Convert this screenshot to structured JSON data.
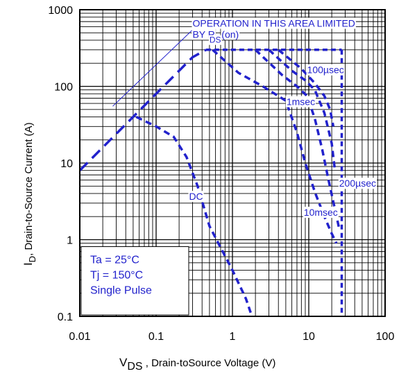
{
  "chart_data": {
    "type": "line",
    "title": "",
    "xlabel_main": "V",
    "xlabel_sub": "DS",
    "xlabel_rest": " , Drain-toSource Voltage (V)",
    "ylabel_main": "I",
    "ylabel_sub": "D",
    "ylabel_rest": ",  Drain-to-Source Current (A)",
    "x_scale": "log",
    "y_scale": "log",
    "xlim": [
      0.01,
      100
    ],
    "ylim": [
      0.1,
      1000
    ],
    "x_ticks": [
      "0.01",
      "0.1",
      "1",
      "10",
      "100"
    ],
    "y_ticks": [
      "0.1",
      "1",
      "10",
      "100",
      "1000"
    ],
    "grid": true,
    "line_color": "#2222cc",
    "series": [
      {
        "name": "",
        "style": "long-dash",
        "x": [
          0.01,
          0.1,
          0.3,
          0.45
        ],
        "y": [
          8,
          80,
          240,
          300
        ]
      },
      {
        "name": "",
        "style": "short-dash",
        "x": [
          0.45,
          27
        ],
        "y": [
          300,
          300
        ]
      },
      {
        "name": "",
        "style": "short-dash",
        "x": [
          27,
          27
        ],
        "y": [
          300,
          0.1
        ]
      },
      {
        "name": "",
        "style": "dash",
        "x": [
          0.055,
          0.1,
          0.17,
          0.25,
          0.35,
          0.5,
          1.0,
          1.5,
          1.8
        ],
        "y": [
          40,
          30,
          22,
          12,
          5,
          1.5,
          0.4,
          0.17,
          0.1
        ]
      },
      {
        "name": "",
        "style": "dash",
        "x": [
          0.55,
          1.2,
          2.5,
          5.0,
          7.0,
          9.0,
          12,
          16,
          20,
          23
        ],
        "y": [
          300,
          150,
          100,
          65,
          25,
          10,
          4.2,
          2.0,
          1.2,
          0.9
        ]
      },
      {
        "name": "",
        "style": "dash",
        "x": [
          2.0,
          4.5,
          7.0,
          9.5,
          12,
          15,
          18,
          22,
          25
        ],
        "y": [
          300,
          140,
          100,
          75,
          38,
          15,
          6.2,
          2.5,
          1.4
        ]
      },
      {
        "name": "",
        "style": "dash",
        "x": [
          3.0,
          6.0,
          9.0,
          12,
          16,
          20,
          22
        ],
        "y": [
          300,
          160,
          120,
          90,
          45,
          18,
          8
        ]
      },
      {
        "name": "",
        "style": "dash",
        "x": [
          4.0,
          8.0,
          12,
          16,
          19,
          21
        ],
        "y": [
          300,
          170,
          110,
          75,
          50,
          30
        ]
      }
    ],
    "annotations": [
      {
        "text": "OPERATION IN THIS AREA LIMITED",
        "x": 0.3,
        "y": 600
      },
      {
        "text": "BY R",
        "x": 0.3,
        "y": 430
      },
      {
        "text": "DS",
        "sub": true,
        "x": 0.5,
        "y": 370
      },
      {
        "text": "(on)",
        "x": 0.72,
        "y": 430
      },
      {
        "text": "DC",
        "x": 0.27,
        "y": 3.3
      },
      {
        "text": "10msec",
        "x": 8.6,
        "y": 2.05
      },
      {
        "text": "1msec",
        "x": 5.1,
        "y": 57
      },
      {
        "text": "100µsec",
        "x": 9.5,
        "y": 148
      },
      {
        "text": "200µsec",
        "x": 25,
        "y": 4.9
      }
    ],
    "legend_box": [
      "Ta = 25°C",
      "Tj = 150°C",
      "Single Pulse"
    ]
  }
}
